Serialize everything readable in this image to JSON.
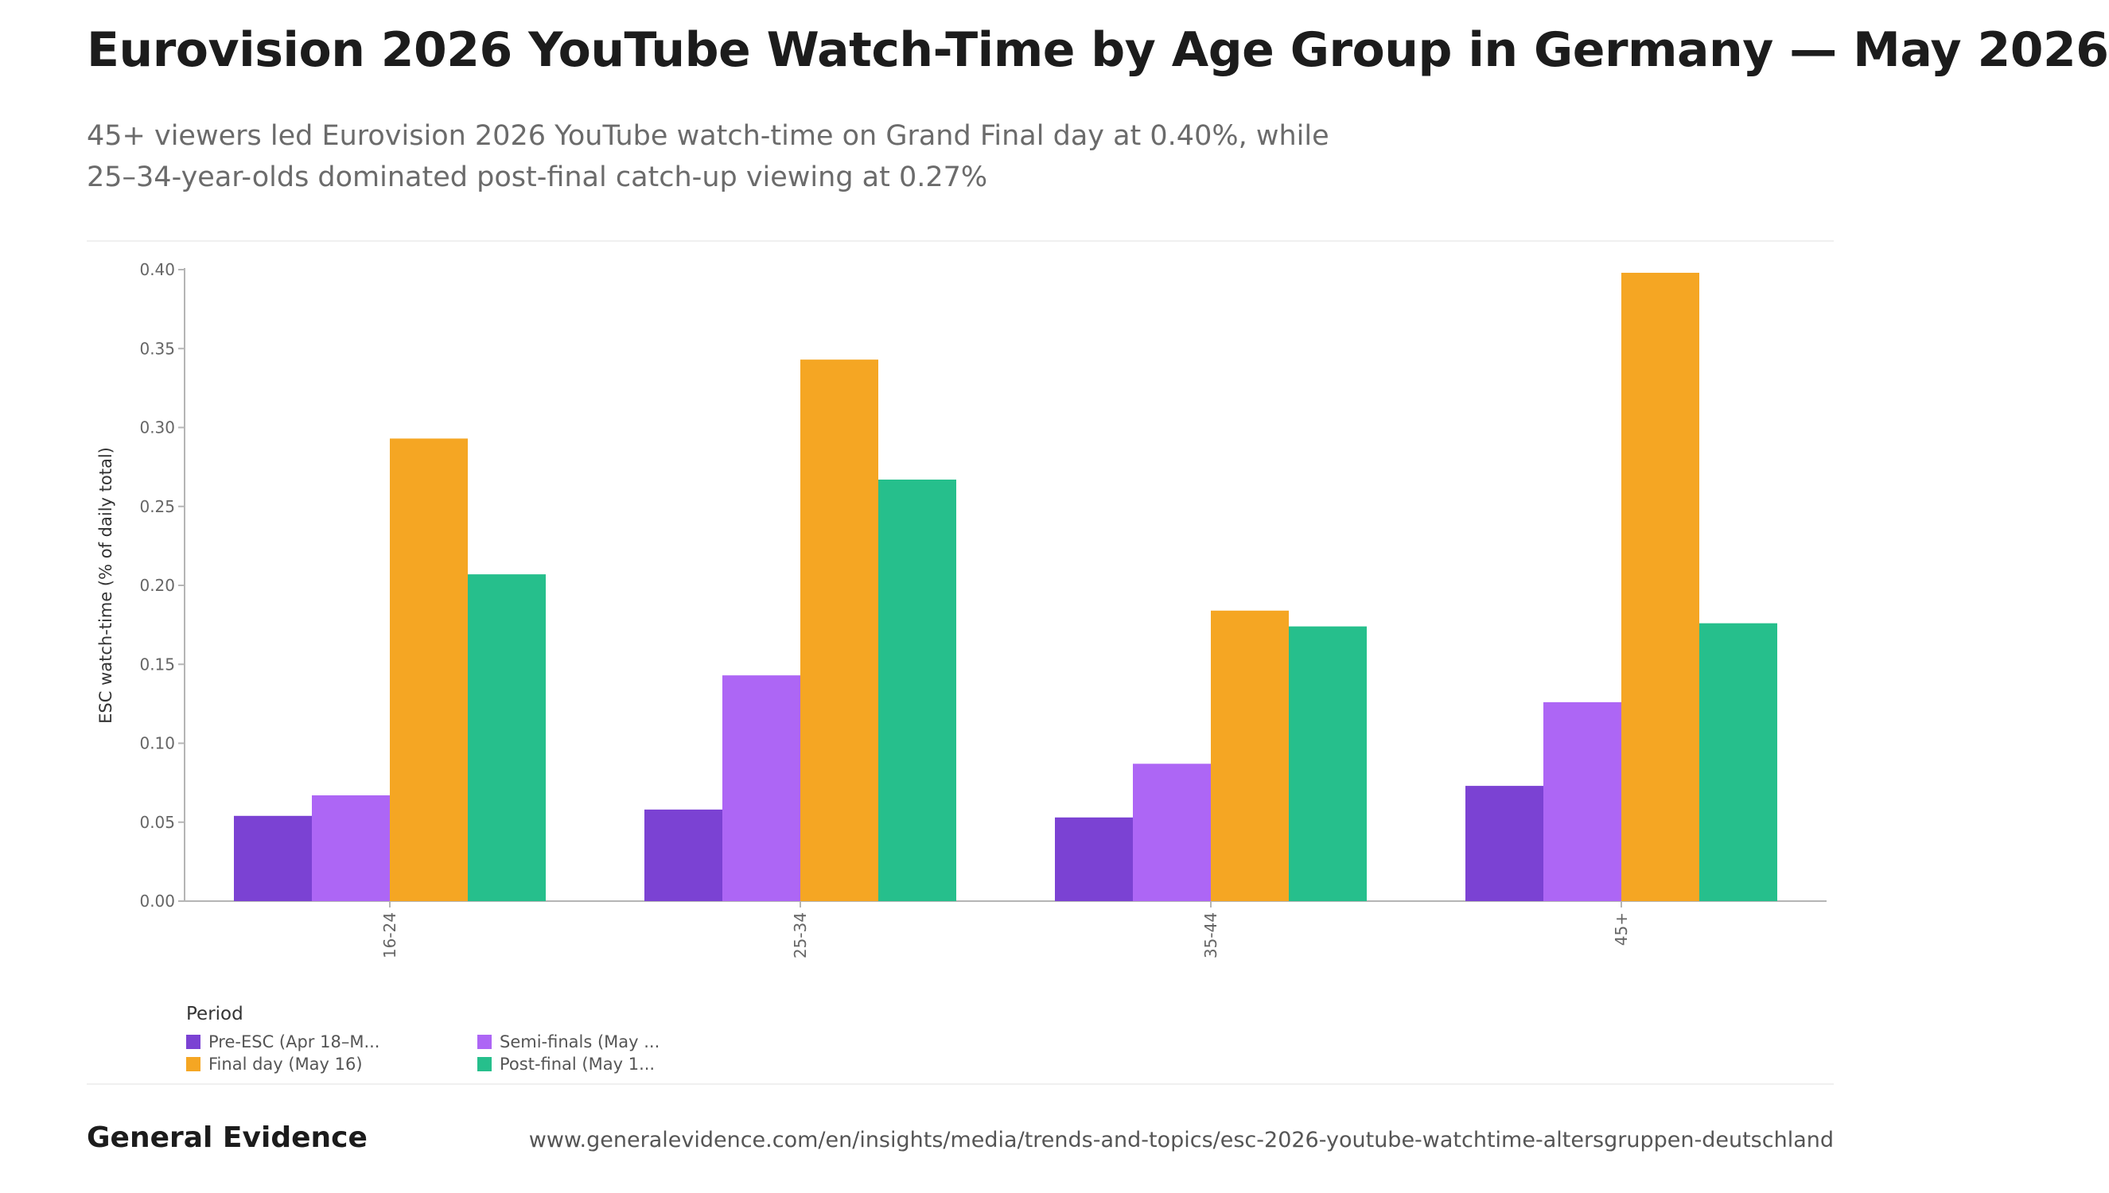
{
  "header": {
    "title": "Eurovision 2026 YouTube Watch-Time by Age Group in Germany — May 2026",
    "subtitle_line1": "45+ viewers led Eurovision 2026 YouTube watch-time on Grand Final day at 0.40%, while",
    "subtitle_line2": "25–34-year-olds dominated post-final catch-up viewing at 0.27%"
  },
  "chart_data": {
    "type": "bar",
    "categories": [
      "16-24",
      "25-34",
      "35-44",
      "45+"
    ],
    "series": [
      {
        "name": "Pre-ESC (Apr 18–M...",
        "color": "#7b42d3",
        "values": [
          0.054,
          0.058,
          0.053,
          0.073
        ]
      },
      {
        "name": "Semi-finals (May ...",
        "color": "#ad66f5",
        "values": [
          0.067,
          0.143,
          0.087,
          0.126
        ]
      },
      {
        "name": "Final day (May 16)",
        "color": "#f5a623",
        "values": [
          0.293,
          0.343,
          0.184,
          0.398
        ]
      },
      {
        "name": "Post-final (May 1...",
        "color": "#26bf8c",
        "values": [
          0.207,
          0.267,
          0.174,
          0.176
        ]
      }
    ],
    "ylabel": "ESC watch-time (% of daily total)",
    "xlabel": "",
    "ylim": [
      0,
      0.4
    ],
    "yticks": [
      "0.00",
      "0.05",
      "0.10",
      "0.15",
      "0.20",
      "0.25",
      "0.30",
      "0.35",
      "0.40"
    ],
    "grid": false,
    "legend_title": "Period",
    "legend_position": "bottom-left"
  },
  "footer": {
    "brand": "General Evidence",
    "url": "www.generalevidence.com/en/insights/media/trends-and-topics/esc-2026-youtube-watchtime-altersgruppen-deutschland"
  }
}
